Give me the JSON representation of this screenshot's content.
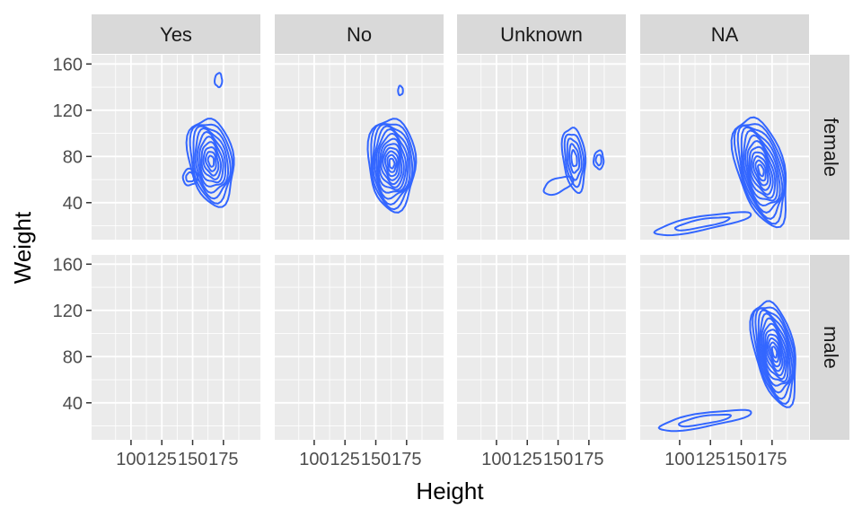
{
  "chart_data": {
    "type": "contour",
    "xlabel": "Height",
    "ylabel": "Weight",
    "xlim": [
      68,
      205
    ],
    "ylim": [
      8,
      168
    ],
    "x_ticks": [
      100,
      125,
      150,
      175
    ],
    "y_ticks": [
      40,
      80,
      120,
      160
    ],
    "grid": true,
    "line_color": "#3366FF",
    "panel_bg": "#EBEBEB",
    "strip_bg": "#D9D9D9",
    "col_facets": [
      "Yes",
      "No",
      "Unknown",
      "NA"
    ],
    "row_facets": [
      "female",
      "male"
    ],
    "panels": [
      {
        "col": "Yes",
        "row": "female",
        "clusters": [
          {
            "cx": 165,
            "cy": 76,
            "rx": 18,
            "ry": 38,
            "rot": 0.15,
            "levels": 10
          },
          {
            "cx": 148,
            "cy": 62,
            "rx": 6,
            "ry": 7,
            "rot": 0,
            "levels": 2
          },
          {
            "cx": 171,
            "cy": 146,
            "rx": 3,
            "ry": 6,
            "rot": 0,
            "levels": 1
          }
        ]
      },
      {
        "col": "No",
        "row": "female",
        "clusters": [
          {
            "cx": 163,
            "cy": 74,
            "rx": 19,
            "ry": 40,
            "rot": 0.05,
            "levels": 12
          },
          {
            "cx": 170,
            "cy": 137,
            "rx": 2,
            "ry": 4,
            "rot": 0,
            "levels": 1
          }
        ]
      },
      {
        "col": "Unknown",
        "row": "female",
        "clusters": [
          {
            "cx": 163,
            "cy": 78,
            "rx": 9,
            "ry": 28,
            "rot": 0.1,
            "levels": 5
          },
          {
            "cx": 150,
            "cy": 55,
            "rx": 13,
            "ry": 6,
            "rot": 0.45,
            "levels": 1
          },
          {
            "cx": 183,
            "cy": 77,
            "rx": 4,
            "ry": 8,
            "rot": 0,
            "levels": 2
          }
        ]
      },
      {
        "col": "NA",
        "row": "female",
        "clusters": [
          {
            "cx": 166,
            "cy": 68,
            "rx": 19,
            "ry": 48,
            "rot": 0.25,
            "levels": 12
          },
          {
            "cx": 118,
            "cy": 22,
            "rx": 40,
            "ry": 6,
            "rot": 0.2,
            "levels": 2
          }
        ]
      },
      {
        "col": "Yes",
        "row": "male",
        "clusters": []
      },
      {
        "col": "No",
        "row": "male",
        "clusters": []
      },
      {
        "col": "Unknown",
        "row": "male",
        "clusters": []
      },
      {
        "col": "NA",
        "row": "male",
        "clusters": [
          {
            "cx": 177,
            "cy": 84,
            "rx": 16,
            "ry": 46,
            "rot": 0.2,
            "levels": 12
          },
          {
            "cx": 120,
            "cy": 25,
            "rx": 38,
            "ry": 6,
            "rot": 0.18,
            "levels": 2
          }
        ]
      }
    ]
  }
}
